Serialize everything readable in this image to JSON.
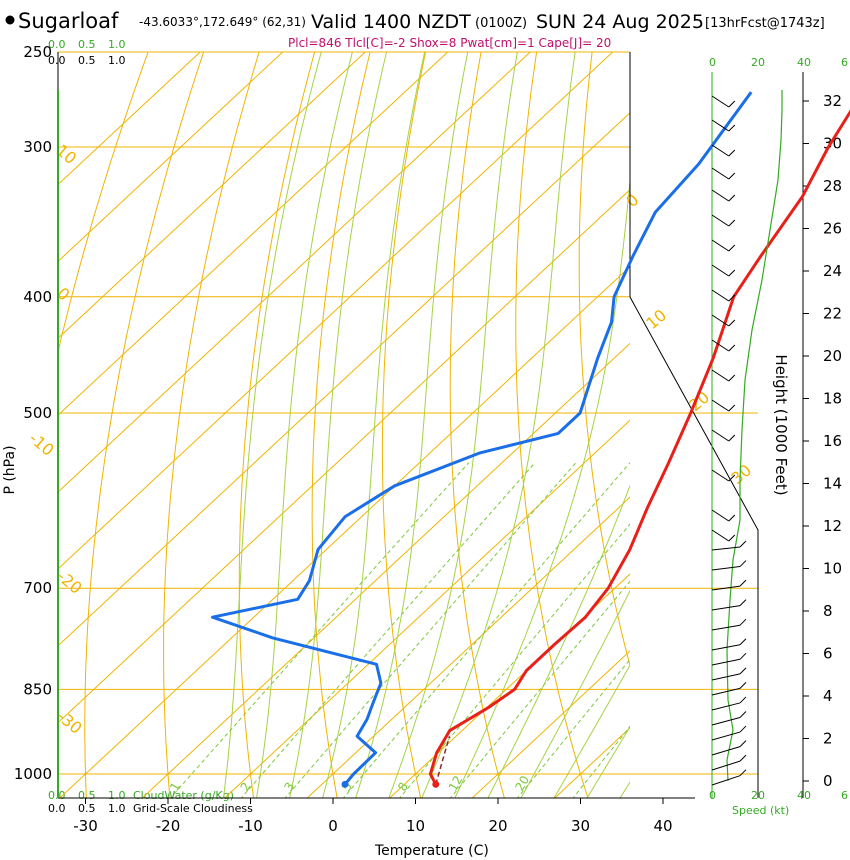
{
  "header": {
    "location": "Sugarloaf",
    "coords": "-43.6033°,172.649° (62,31)",
    "valid": "Valid 1400 NZDT",
    "utc": "(0100Z)",
    "date": "SUN 24 Aug 2025",
    "run": "[13hrFcst@1743z]",
    "indices": "Plcl=846 Tlcl[C]=-2 Shox=8 Pwat[cm]=1 Cape[J]= 20"
  },
  "scales": {
    "cloudwater_top": [
      "0.0",
      "0.5",
      "1.0"
    ],
    "cloudiness_top": [
      "0.0",
      "0.5",
      "1.0"
    ],
    "cloudwater_bottom": [
      "0.0",
      "0.5",
      "1.0"
    ],
    "cloudiness_bottom": [
      "0.0",
      "0.5",
      "1.0"
    ],
    "cloudwater_label": "CloudWater (g/Kg)",
    "cloudiness_label": "Grid-Scale Cloudiness",
    "wind_speed_ticks": [
      "0",
      "20",
      "40",
      "6"
    ],
    "wind_speed_label": "Speed (kt)"
  },
  "chart_data": {
    "type": "line",
    "title": "Skew-T log-P sounding",
    "xlabel": "Temperature (C)",
    "ylabel": "P (hPa)",
    "y2label": "Height (1000 Feet)",
    "x_ticks": [
      -30,
      -20,
      -10,
      0,
      10,
      20,
      30,
      40
    ],
    "p_ticks": [
      250,
      300,
      400,
      500,
      700,
      850,
      1000
    ],
    "height_ticks": [
      0,
      2,
      4,
      6,
      8,
      10,
      12,
      14,
      16,
      18,
      20,
      22,
      24,
      26,
      28,
      30,
      32
    ],
    "isotherm_labels": [
      "10",
      "0",
      "-10",
      "-20",
      "-30",
      "0",
      "10",
      "20",
      "30"
    ],
    "mixing_ratio_labels": [
      "1",
      "2",
      "3",
      "5",
      "8",
      "12",
      "20"
    ],
    "series": [
      {
        "name": "Temperature",
        "color": "#e8201a",
        "p": [
          1020,
          1000,
          960,
          920,
          880,
          850,
          820,
          780,
          740,
          700,
          650,
          600,
          550,
          500,
          450,
          400,
          370,
          330,
          300,
          270
        ],
        "temp": [
          13.8,
          11.8,
          9.8,
          8.5,
          10.2,
          11.0,
          10.0,
          10.0,
          10.2,
          9.2,
          6.8,
          3.5,
          0.2,
          -3.6,
          -8.0,
          -13.5,
          -15.5,
          -18.2,
          -21.5,
          -24.5
        ]
      },
      {
        "name": "Dewpoint",
        "color": "#1a6ee8",
        "p": [
          1020,
          1000,
          960,
          930,
          900,
          880,
          860,
          840,
          810,
          770,
          740,
          715,
          690,
          650,
          610,
          575,
          540,
          520,
          500,
          450,
          420,
          400,
          370,
          340,
          310,
          270
        ],
        "temp": [
          2.8,
          2.5,
          2.4,
          -2.0,
          -3.0,
          -4.0,
          -5.0,
          -6.0,
          -9.0,
          -25.0,
          -35.0,
          -27.0,
          -28.0,
          -31.0,
          -32.0,
          -30.0,
          -24.0,
          -17.0,
          -17.0,
          -22.0,
          -25.0,
          -28.0,
          -31.0,
          -34.0,
          -35.0,
          -38.0
        ]
      }
    ],
    "surface_markers": [
      {
        "name": "surface-temperature",
        "temp": 13.8,
        "p": 1020,
        "color": "#e8201a"
      },
      {
        "name": "surface-dewpoint",
        "temp": 2.8,
        "p": 1020,
        "color": "#1a6ee8"
      }
    ]
  }
}
